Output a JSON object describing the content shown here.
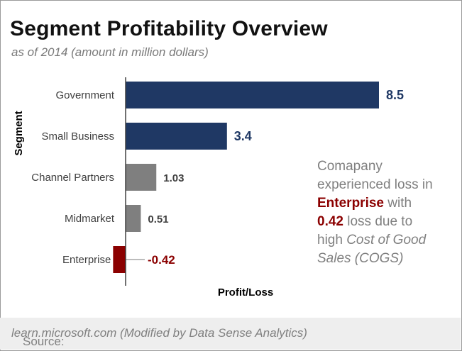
{
  "title": "Segment Profitability Overview",
  "subtitle": "as of 2014 (amount in million dollars)",
  "annotation": {
    "line1": "Comapany",
    "line2": "experienced loss in",
    "segment": "Enterprise",
    "line3_tail": " with",
    "amount": "0.42",
    "line4_tail": " loss due to",
    "line5_head": "high ",
    "cause_italic_1": "Cost of Good",
    "cause_italic_2": "Sales (COGS)"
  },
  "footer": {
    "prefix": "Source: ",
    "source": "learn.microsoft.com (Modified by Data Sense Analytics)"
  },
  "colors": {
    "positive_large": "#1f3864",
    "positive_small": "#7f7f7f",
    "negative": "#8b0000",
    "label_dark": "#404040"
  },
  "chart_data": {
    "type": "bar",
    "orientation": "horizontal",
    "categories": [
      "Government",
      "Small Business",
      "Channel Partners",
      "Midmarket",
      "Enterprise"
    ],
    "values": [
      8.5,
      3.4,
      1.03,
      0.51,
      -0.42
    ],
    "value_labels": [
      "8.5",
      "3.4",
      "1.03",
      "0.51",
      "-0.42"
    ],
    "xlabel": "Profit/Loss",
    "ylabel": "Segment",
    "xlim": [
      -0.42,
      8.5
    ],
    "grid": false,
    "legend": "none"
  }
}
